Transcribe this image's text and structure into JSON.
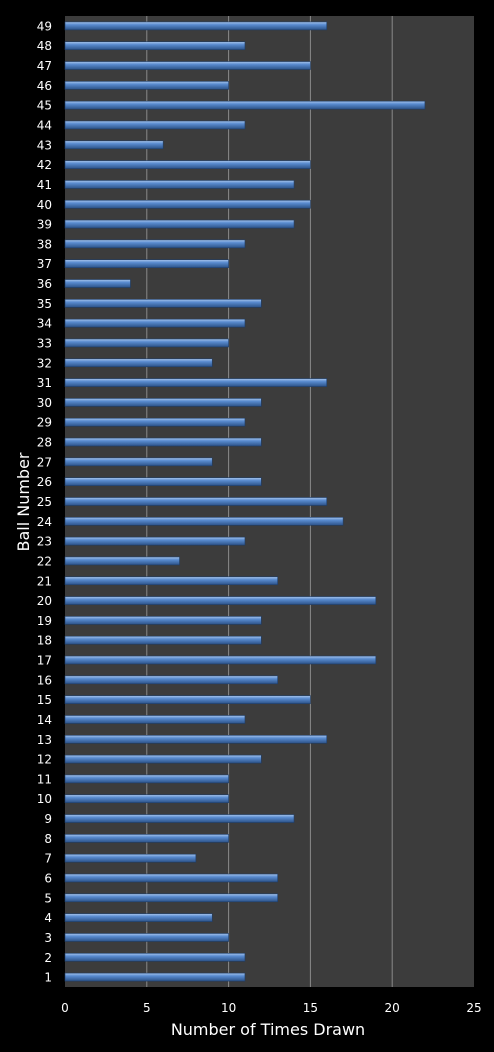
{
  "chart_data": {
    "type": "bar",
    "orientation": "horizontal",
    "title": "",
    "xlabel": "Number of Times Drawn",
    "ylabel": "Ball Number",
    "xlim": [
      0,
      25
    ],
    "x_ticks": [
      0,
      5,
      10,
      15,
      20,
      25
    ],
    "grid": "vertical major gridlines",
    "legend": "none",
    "categories": [
      "1",
      "2",
      "3",
      "4",
      "5",
      "6",
      "7",
      "8",
      "9",
      "10",
      "11",
      "12",
      "13",
      "14",
      "15",
      "16",
      "17",
      "18",
      "19",
      "20",
      "21",
      "22",
      "23",
      "24",
      "25",
      "26",
      "27",
      "28",
      "29",
      "30",
      "31",
      "32",
      "33",
      "34",
      "35",
      "36",
      "37",
      "38",
      "39",
      "40",
      "41",
      "42",
      "43",
      "44",
      "45",
      "46",
      "47",
      "48",
      "49"
    ],
    "series": [
      {
        "values": [
          11,
          11,
          10,
          9,
          13,
          13,
          8,
          10,
          14,
          10,
          10,
          12,
          16,
          11,
          15,
          13,
          19,
          12,
          12,
          19,
          13,
          7,
          11,
          17,
          16,
          12,
          9,
          12,
          11,
          12,
          16,
          9,
          10,
          11,
          12,
          4,
          10,
          11,
          14,
          15,
          14,
          15,
          6,
          11,
          22,
          10,
          15,
          11,
          16
        ]
      }
    ],
    "colors": {
      "background": "#000000",
      "plot_area": "#3c3c3c",
      "gridline": "#8a8a8a",
      "bar_fill": "#4f81bd",
      "bar_highlight": "#9fbde6",
      "bar_shadow": "#2a4d7d",
      "text": "#ffffff"
    }
  }
}
